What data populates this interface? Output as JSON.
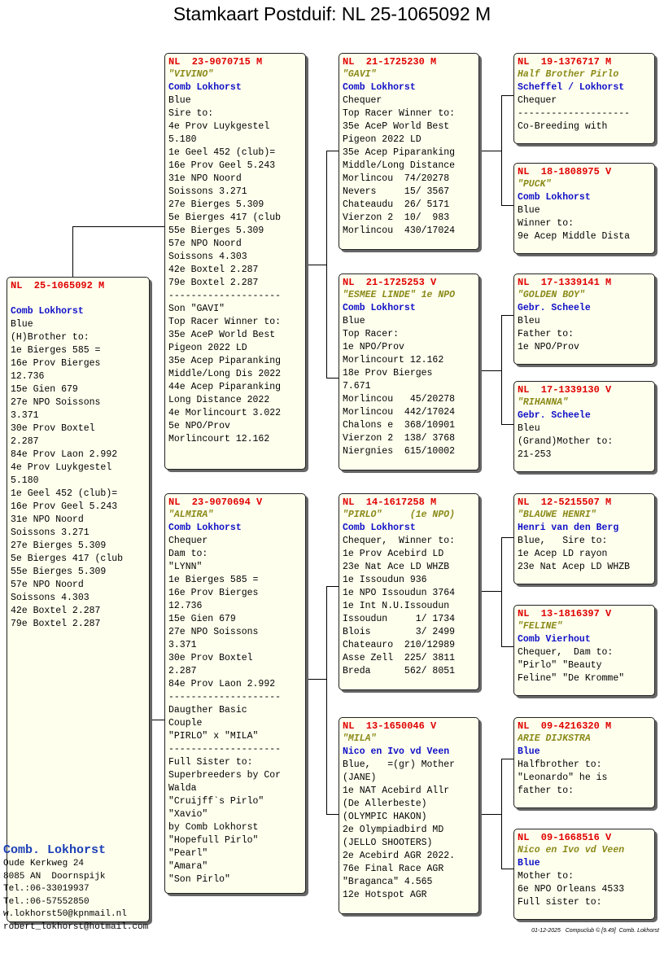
{
  "title": "Stamkaart Postduif: NL  25-1065092 M",
  "colors": {
    "ring": "#e00000",
    "name": "#8a8a1a",
    "owner": "#1010c8",
    "card_bg": "#ffffee"
  },
  "cards": [
    {
      "id": "subject",
      "lines": [
        {
          "t": "NL  25-1065092 M",
          "s": "ring"
        },
        {
          "t": "",
          "s": ""
        },
        {
          "t": "Comb Lokhorst",
          "s": "owner"
        },
        {
          "t": "Blue",
          "s": ""
        },
        {
          "t": "(H)Brother to:",
          "s": ""
        },
        {
          "t": "1e Bierges 585 =",
          "s": ""
        },
        {
          "t": "16e Prov Bierges",
          "s": ""
        },
        {
          "t": "12.736",
          "s": ""
        },
        {
          "t": "15e Gien 679",
          "s": ""
        },
        {
          "t": "27e NPO Soissons",
          "s": ""
        },
        {
          "t": "3.371",
          "s": ""
        },
        {
          "t": "30e Prov Boxtel",
          "s": ""
        },
        {
          "t": "2.287",
          "s": ""
        },
        {
          "t": "84e Prov Laon 2.992",
          "s": ""
        },
        {
          "t": "4e Prov Luykgestel",
          "s": ""
        },
        {
          "t": "5.180",
          "s": ""
        },
        {
          "t": "1e Geel 452 (club)=",
          "s": ""
        },
        {
          "t": "16e Prov Geel 5.243",
          "s": ""
        },
        {
          "t": "31e NPO Noord",
          "s": ""
        },
        {
          "t": "Soissons 3.271",
          "s": ""
        },
        {
          "t": "27e Bierges 5.309",
          "s": ""
        },
        {
          "t": "5e Bierges 417 (club",
          "s": ""
        },
        {
          "t": "55e Bierges 5.309",
          "s": ""
        },
        {
          "t": "57e NPO Noord",
          "s": ""
        },
        {
          "t": "Soissons 4.303",
          "s": ""
        },
        {
          "t": "42e Boxtel 2.287",
          "s": ""
        },
        {
          "t": "79e Boxtel 2.287",
          "s": ""
        }
      ]
    },
    {
      "id": "sire",
      "lines": [
        {
          "t": "NL  23-9070715 M",
          "s": "ring"
        },
        {
          "t": "\"VIVINO\"",
          "s": "name"
        },
        {
          "t": "Comb Lokhorst",
          "s": "owner"
        },
        {
          "t": "Blue",
          "s": ""
        },
        {
          "t": "Sire to:",
          "s": ""
        },
        {
          "t": "4e Prov Luykgestel",
          "s": ""
        },
        {
          "t": "5.180",
          "s": ""
        },
        {
          "t": "1e Geel 452 (club)=",
          "s": ""
        },
        {
          "t": "16e Prov Geel 5.243",
          "s": ""
        },
        {
          "t": "31e NPO Noord",
          "s": ""
        },
        {
          "t": "Soissons 3.271",
          "s": ""
        },
        {
          "t": "27e Bierges 5.309",
          "s": ""
        },
        {
          "t": "5e Bierges 417 (club",
          "s": ""
        },
        {
          "t": "55e Bierges 5.309",
          "s": ""
        },
        {
          "t": "57e NPO Noord",
          "s": ""
        },
        {
          "t": "Soissons 4.303",
          "s": ""
        },
        {
          "t": "42e Boxtel 2.287",
          "s": ""
        },
        {
          "t": "79e Boxtel 2.287",
          "s": ""
        },
        {
          "t": "--------------------",
          "s": ""
        },
        {
          "t": "Son \"GAVI\"",
          "s": ""
        },
        {
          "t": "Top Racer Winner to:",
          "s": ""
        },
        {
          "t": "35e AceP World Best",
          "s": ""
        },
        {
          "t": "Pigeon 2022 LD",
          "s": ""
        },
        {
          "t": "35e Acep Piparanking",
          "s": ""
        },
        {
          "t": "Middle/Long Dis 2022",
          "s": ""
        },
        {
          "t": "44e Acep Piparanking",
          "s": ""
        },
        {
          "t": "Long Distance 2022",
          "s": ""
        },
        {
          "t": "4e Morlincourt 3.022",
          "s": ""
        },
        {
          "t": "5e NPO/Prov",
          "s": ""
        },
        {
          "t": "Morlincourt 12.162",
          "s": ""
        }
      ]
    },
    {
      "id": "dam",
      "lines": [
        {
          "t": "NL  23-9070694 V",
          "s": "ring"
        },
        {
          "t": "\"ALMIRA\"",
          "s": "name"
        },
        {
          "t": "Comb Lokhorst",
          "s": "owner"
        },
        {
          "t": "Chequer",
          "s": ""
        },
        {
          "t": "Dam to:",
          "s": ""
        },
        {
          "t": "\"LYNN\"",
          "s": ""
        },
        {
          "t": "1e Bierges 585 =",
          "s": ""
        },
        {
          "t": "16e Prov Bierges",
          "s": ""
        },
        {
          "t": "12.736",
          "s": ""
        },
        {
          "t": "15e Gien 679",
          "s": ""
        },
        {
          "t": "27e NPO Soissons",
          "s": ""
        },
        {
          "t": "3.371",
          "s": ""
        },
        {
          "t": "30e Prov Boxtel",
          "s": ""
        },
        {
          "t": "2.287",
          "s": ""
        },
        {
          "t": "84e Prov Laon 2.992",
          "s": ""
        },
        {
          "t": "--------------------",
          "s": ""
        },
        {
          "t": "Daugther Basic",
          "s": ""
        },
        {
          "t": "Couple",
          "s": ""
        },
        {
          "t": "\"PIRLO\" x \"MILA\"",
          "s": ""
        },
        {
          "t": "--------------------",
          "s": ""
        },
        {
          "t": "Full Sister to:",
          "s": ""
        },
        {
          "t": "Superbreeders by Cor",
          "s": ""
        },
        {
          "t": "Walda",
          "s": ""
        },
        {
          "t": "\"Cruijff`s Pirlo\"",
          "s": ""
        },
        {
          "t": "\"Xavio\"",
          "s": ""
        },
        {
          "t": "by Comb Lokhorst",
          "s": ""
        },
        {
          "t": "\"Hopefull Pirlo\"",
          "s": ""
        },
        {
          "t": "\"Pearl\"",
          "s": ""
        },
        {
          "t": "\"Amara\"",
          "s": ""
        },
        {
          "t": "\"Son Pirlo\"",
          "s": ""
        }
      ]
    },
    {
      "id": "ss",
      "lines": [
        {
          "t": "NL  21-1725230 M",
          "s": "ring"
        },
        {
          "t": "\"GAVI\"",
          "s": "name"
        },
        {
          "t": "Comb Lokhorst",
          "s": "owner"
        },
        {
          "t": "Chequer",
          "s": ""
        },
        {
          "t": "Top Racer Winner to:",
          "s": ""
        },
        {
          "t": "35e AceP World Best",
          "s": ""
        },
        {
          "t": "Pigeon 2022 LD",
          "s": ""
        },
        {
          "t": "35e Acep Piparanking",
          "s": ""
        },
        {
          "t": "Middle/Long Distance",
          "s": ""
        },
        {
          "t": "Morlincou  74/20278",
          "s": ""
        },
        {
          "t": "Nevers     15/ 3567",
          "s": ""
        },
        {
          "t": "Chateaudu  26/ 5171",
          "s": ""
        },
        {
          "t": "Vierzon 2  10/  983",
          "s": ""
        },
        {
          "t": "Morlincou  430/17024",
          "s": ""
        }
      ]
    },
    {
      "id": "sd",
      "lines": [
        {
          "t": "NL  21-1725253 V",
          "s": "ring"
        },
        {
          "t": "\"ESMEE LINDE\" 1e NPO",
          "s": "name"
        },
        {
          "t": "Comb Lokhorst",
          "s": "owner"
        },
        {
          "t": "Blue",
          "s": ""
        },
        {
          "t": "Top Racer:",
          "s": ""
        },
        {
          "t": "1e NPO/Prov",
          "s": ""
        },
        {
          "t": "Morlincourt 12.162",
          "s": ""
        },
        {
          "t": "18e Prov Bierges",
          "s": ""
        },
        {
          "t": "7.671",
          "s": ""
        },
        {
          "t": "Morlincou   45/20278",
          "s": ""
        },
        {
          "t": "Morlincou  442/17024",
          "s": ""
        },
        {
          "t": "Chalons e  368/10901",
          "s": ""
        },
        {
          "t": "Vierzon 2  138/ 3768",
          "s": ""
        },
        {
          "t": "Niergnies  615/10002",
          "s": ""
        }
      ]
    },
    {
      "id": "ds",
      "lines": [
        {
          "t": "NL  14-1617258 M",
          "s": "ring"
        },
        {
          "t": "\"PIRLO\"     (1e NPO)",
          "s": "name"
        },
        {
          "t": "Comb Lokhorst",
          "s": "owner"
        },
        {
          "t": "Chequer,  Winner to:",
          "s": ""
        },
        {
          "t": "1e Prov Acebird LD",
          "s": ""
        },
        {
          "t": "23e Nat Ace LD WHZB",
          "s": ""
        },
        {
          "t": "1e Issoudun 936",
          "s": ""
        },
        {
          "t": "1e NPO Issoudun 3764",
          "s": ""
        },
        {
          "t": "1e Int N.U.Issoudun",
          "s": ""
        },
        {
          "t": "Issoudun     1/ 1734",
          "s": ""
        },
        {
          "t": "Blois        3/ 2499",
          "s": ""
        },
        {
          "t": "Chateauro  210/12989",
          "s": ""
        },
        {
          "t": "Asse Zell  225/ 3811",
          "s": ""
        },
        {
          "t": "Breda      562/ 8051",
          "s": ""
        }
      ]
    },
    {
      "id": "dd",
      "lines": [
        {
          "t": "NL  13-1650046 V",
          "s": "ring"
        },
        {
          "t": "\"MILA\"",
          "s": "name"
        },
        {
          "t": "Nico en Ivo vd Veen",
          "s": "owner"
        },
        {
          "t": "Blue,   =(gr) Mother",
          "s": ""
        },
        {
          "t": "(JANE)",
          "s": ""
        },
        {
          "t": "1e NAT Acebird Allr",
          "s": ""
        },
        {
          "t": "(De Allerbeste)",
          "s": ""
        },
        {
          "t": "(OLYMPIC HAKON)",
          "s": ""
        },
        {
          "t": "2e Olympiadbird MD",
          "s": ""
        },
        {
          "t": "(JELLO SHOOTERS)",
          "s": ""
        },
        {
          "t": "2e Acebird AGR 2022.",
          "s": ""
        },
        {
          "t": "76e Final Race AGR",
          "s": ""
        },
        {
          "t": "\"Braganca\" 4.565",
          "s": ""
        },
        {
          "t": "12e Hotspot AGR",
          "s": ""
        }
      ]
    },
    {
      "id": "sss",
      "lines": [
        {
          "t": "NL  19-1376717 M",
          "s": "ring"
        },
        {
          "t": "Half Brother Pirlo",
          "s": "name"
        },
        {
          "t": "Scheffel / Lokhorst",
          "s": "owner"
        },
        {
          "t": "Chequer",
          "s": ""
        },
        {
          "t": "--------------------",
          "s": ""
        },
        {
          "t": "Co-Breeding with",
          "s": ""
        }
      ]
    },
    {
      "id": "ssd",
      "lines": [
        {
          "t": "NL  18-1808975 V",
          "s": "ring"
        },
        {
          "t": "\"PUCK\"",
          "s": "name"
        },
        {
          "t": "Comb Lokhorst",
          "s": "owner"
        },
        {
          "t": "Blue",
          "s": ""
        },
        {
          "t": "Winner to:",
          "s": ""
        },
        {
          "t": "9e Acep Middle Dista",
          "s": ""
        }
      ]
    },
    {
      "id": "sds",
      "lines": [
        {
          "t": "NL  17-1339141 M",
          "s": "ring"
        },
        {
          "t": "\"GOLDEN BOY\"",
          "s": "name"
        },
        {
          "t": "Gebr. Scheele",
          "s": "owner"
        },
        {
          "t": "Bleu",
          "s": ""
        },
        {
          "t": "Father to:",
          "s": ""
        },
        {
          "t": "1e NPO/Prov",
          "s": ""
        }
      ]
    },
    {
      "id": "sdd",
      "lines": [
        {
          "t": "NL  17-1339130 V",
          "s": "ring"
        },
        {
          "t": "\"RIHANNA\"",
          "s": "name"
        },
        {
          "t": "Gebr. Scheele",
          "s": "owner"
        },
        {
          "t": "Bleu",
          "s": ""
        },
        {
          "t": "(Grand)Mother to:",
          "s": ""
        },
        {
          "t": "21-253",
          "s": ""
        }
      ]
    },
    {
      "id": "dss",
      "lines": [
        {
          "t": "NL  12-5215507 M",
          "s": "ring"
        },
        {
          "t": "\"BLAUWE HENRI\"",
          "s": "name"
        },
        {
          "t": "Henri van den Berg",
          "s": "owner"
        },
        {
          "t": "Blue,   Sire to:",
          "s": ""
        },
        {
          "t": "1e Acep LD rayon",
          "s": ""
        },
        {
          "t": "23e Nat Acep LD WHZB",
          "s": ""
        }
      ]
    },
    {
      "id": "dsd",
      "lines": [
        {
          "t": "NL  13-1816397 V",
          "s": "ring"
        },
        {
          "t": "\"FELINE\"",
          "s": "name"
        },
        {
          "t": "Comb Vierhout",
          "s": "owner"
        },
        {
          "t": "Chequer,  Dam to:",
          "s": ""
        },
        {
          "t": "\"Pirlo\" \"Beauty",
          "s": ""
        },
        {
          "t": "Feline\" \"De Kromme\"",
          "s": ""
        }
      ]
    },
    {
      "id": "dds",
      "lines": [
        {
          "t": "NL  09-4216320 M",
          "s": "ring"
        },
        {
          "t": "ARIE DIJKSTRA",
          "s": "name"
        },
        {
          "t": "Blue",
          "s": "owner"
        },
        {
          "t": "Halfbrother to:",
          "s": ""
        },
        {
          "t": "\"Leonardo\" he is",
          "s": ""
        },
        {
          "t": "father to:",
          "s": ""
        }
      ]
    },
    {
      "id": "ddd",
      "lines": [
        {
          "t": "NL  09-1668516 V",
          "s": "ring"
        },
        {
          "t": "Nico en Ivo vd Veen",
          "s": "name"
        },
        {
          "t": "Blue",
          "s": "owner"
        },
        {
          "t": "Mother to:",
          "s": ""
        },
        {
          "t": "6e NPO Orleans 4533",
          "s": ""
        },
        {
          "t": "Full sister to:",
          "s": ""
        }
      ]
    }
  ],
  "owner": {
    "name": "Comb. Lokhorst",
    "lines": [
      "Oude Kerkweg 24",
      "8085 AN  Doornspijk",
      "Tel.:06-33019937",
      "Tel.:06-57552850",
      "w.lokhorst50@kpnmail.nl",
      "robert_lokhorst@hotmail.com"
    ]
  },
  "footer": "01-12-2025   Compuclub © [9.49]  Comb. Lokhorst"
}
